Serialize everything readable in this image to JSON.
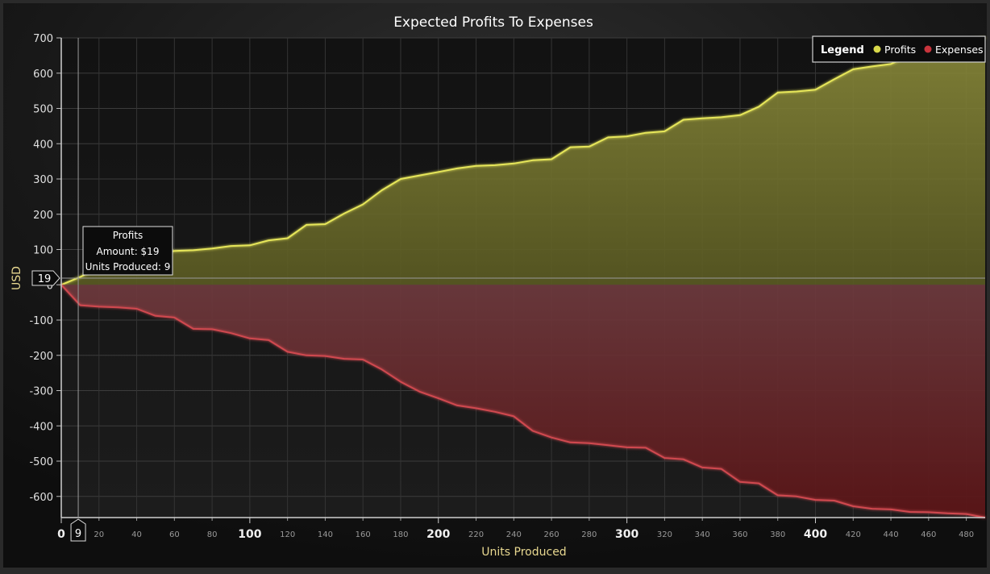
{
  "chart_data": {
    "type": "area",
    "title": "Expected Profits To Expenses",
    "xlabel": "Units Produced",
    "ylabel": "USD",
    "xlim": [
      0,
      490
    ],
    "ylim": [
      -660,
      700
    ],
    "x_major_ticks": [
      0,
      100,
      200,
      300,
      400
    ],
    "x_minor_ticks": [
      20,
      40,
      60,
      80,
      120,
      140,
      160,
      180,
      220,
      240,
      260,
      280,
      320,
      340,
      360,
      380,
      420,
      440,
      460,
      480
    ],
    "y_ticks": [
      -600,
      -500,
      -400,
      -300,
      -200,
      -100,
      0,
      100,
      200,
      300,
      400,
      500,
      600,
      700
    ],
    "grid": true,
    "legend": {
      "title": "Legend",
      "placement": "top-right",
      "entries": [
        {
          "name": "Profits",
          "color": "#d8d84a"
        },
        {
          "name": "Expenses",
          "color": "#c8343c"
        }
      ]
    },
    "x": [
      0,
      10,
      20,
      30,
      40,
      50,
      60,
      70,
      80,
      90,
      100,
      110,
      120,
      130,
      140,
      150,
      160,
      170,
      180,
      190,
      200,
      210,
      220,
      230,
      240,
      250,
      260,
      270,
      280,
      290,
      300,
      310,
      320,
      330,
      340,
      350,
      360,
      370,
      380,
      390,
      400,
      410,
      420,
      430,
      440,
      450,
      460,
      470,
      480,
      490
    ],
    "series": [
      {
        "name": "Profits",
        "color": "#e6e65a",
        "values": [
          0,
          22,
          50,
          76,
          84,
          90,
          96,
          98,
          103,
          110,
          112,
          126,
          132,
          170,
          172,
          202,
          228,
          268,
          300,
          310,
          320,
          330,
          337,
          339,
          344,
          353,
          356,
          390,
          392,
          418,
          421,
          431,
          435,
          468,
          472,
          475,
          481,
          505,
          545,
          548,
          553,
          583,
          611,
          619,
          626,
          650,
          671,
          677,
          695,
          700
        ]
      },
      {
        "name": "Expenses",
        "color": "#d04850",
        "values": [
          0,
          -58,
          -62,
          -64,
          -68,
          -88,
          -93,
          -125,
          -126,
          -137,
          -152,
          -157,
          -190,
          -200,
          -202,
          -210,
          -212,
          -240,
          -275,
          -303,
          -322,
          -342,
          -350,
          -360,
          -373,
          -414,
          -433,
          -447,
          -449,
          -455,
          -461,
          -462,
          -491,
          -495,
          -518,
          -522,
          -559,
          -563,
          -597,
          -600,
          -610,
          -612,
          -628,
          -635,
          -637,
          -644,
          -645,
          -648,
          -650,
          -660
        ]
      }
    ],
    "tooltip": {
      "title": "Profits",
      "line1": "Amount: $19",
      "line2": "Units Produced: 9",
      "x": 9,
      "y": 19,
      "x_marker": "9",
      "y_marker": "19"
    }
  }
}
